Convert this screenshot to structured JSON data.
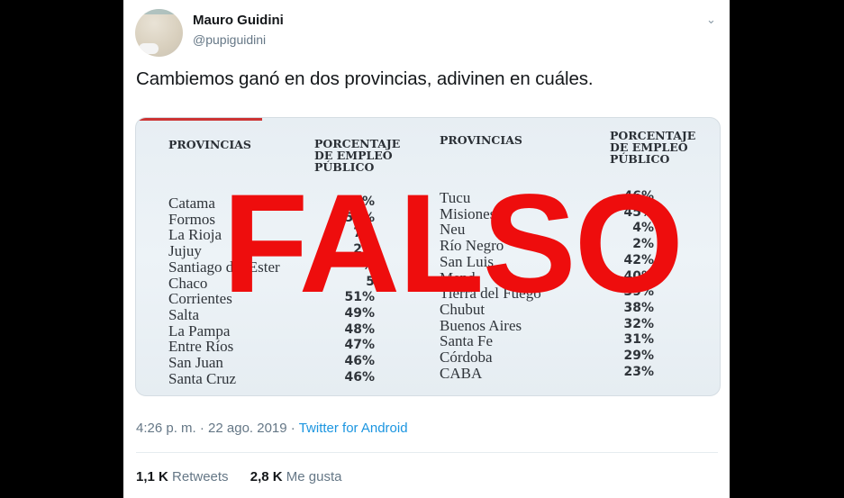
{
  "tweet": {
    "author_name": "Mauro Guidini",
    "author_handle": "@pupiguidini",
    "text": "Cambiemos ganó en dos provincias, adivinen en cuáles.",
    "timestamp": "4:26 p. m. · 22 ago. 2019 · ",
    "source": "Twitter for Android",
    "retweets_count": "1,1 K",
    "retweets_label": " Retweets",
    "likes_count": "2,8 K",
    "likes_label": " Me gusta",
    "menu_icon": "chevron-down-icon"
  },
  "media": {
    "overlay_text": "FALSO",
    "overlay_color": "#ee0d0d",
    "headers": {
      "provinces": "PROVINCIAS",
      "percent_line1": "PORCENTAJE",
      "percent_line2": "DE EMPLEO",
      "percent_line3": "PÚBLICO"
    },
    "left_rows": [
      {
        "province": "Catama",
        "pct": "69%"
      },
      {
        "province": "Formos",
        "pct": "59%"
      },
      {
        "province": "La Rioja",
        "pct": "7%"
      },
      {
        "province": "Jujuy",
        "pct": "2%"
      },
      {
        "province": "Santiago del Ester",
        "pct": "%"
      },
      {
        "province": "Chaco",
        "pct": "5"
      },
      {
        "province": "Corrientes",
        "pct": "51%"
      },
      {
        "province": "Salta",
        "pct": "49%"
      },
      {
        "province": "La Pampa",
        "pct": "48%"
      },
      {
        "province": "Entre Ríos",
        "pct": "47%"
      },
      {
        "province": "San Juan",
        "pct": "46%"
      },
      {
        "province": "Santa Cruz",
        "pct": "46%"
      }
    ],
    "right_rows": [
      {
        "province": "Tucu",
        "pct": "46%"
      },
      {
        "province": "Misiones",
        "pct": "45%"
      },
      {
        "province": "Neu",
        "pct": "4%"
      },
      {
        "province": "Río Negro",
        "pct": "2%"
      },
      {
        "province": "San Luis",
        "pct": "42%"
      },
      {
        "province": "Mend",
        "pct": "40%"
      },
      {
        "province": "Tierra del Fuego",
        "pct": "39%"
      },
      {
        "province": "Chubut",
        "pct": "38%"
      },
      {
        "province": "Buenos Aires",
        "pct": "32%"
      },
      {
        "province": "Santa Fe",
        "pct": "31%"
      },
      {
        "province": "Córdoba",
        "pct": "29%"
      },
      {
        "province": "CABA",
        "pct": "23%"
      }
    ]
  }
}
